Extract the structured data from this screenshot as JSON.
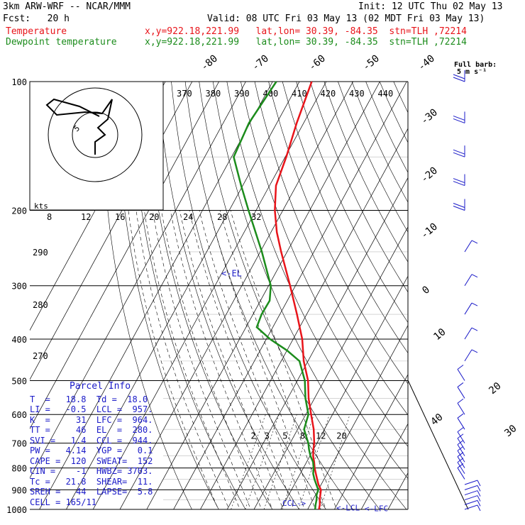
{
  "header": {
    "model": "3km ARW-WRF -- NCAR/MMM",
    "init": "Init: 12 UTC Thu 02 May 13",
    "fcst": "Fcst:   20 h",
    "valid": "Valid: 08 UTC Fri 03 May 13 (02 MDT Fri 03 May 13)",
    "temp_label": "Temperature",
    "temp_loc": "x,y=922.18,221.99   lat,lon= 30.39, -84.35  stn=TLH ,72214",
    "dew_label": "Dewpoint temperature",
    "dew_loc": "x,y=922.18,221.99   lat,lon= 30.39, -84.35  stn=TLH ,72214"
  },
  "colors": {
    "temperature": "#e8141a",
    "dewpoint": "#1c8c1c",
    "wind": "#1a1ac8",
    "grid": "#000000"
  },
  "barb_key": {
    "line1": "Full barb:",
    "line2": "5 m s⁻¹"
  },
  "hodograph": {
    "units_label": "kts",
    "ring_labels": [
      "5"
    ],
    "speed_ticks": [
      "8",
      "12",
      "16",
      "20",
      "24",
      "28",
      "32"
    ],
    "theta_e_ticks": [
      "370",
      "380",
      "390",
      "400",
      "410",
      "420",
      "430",
      "440"
    ]
  },
  "chart_data": {
    "type": "line",
    "diagram": "skew-T log-p",
    "title": "",
    "ylabel": "",
    "xlabel": "",
    "pressure_levels": [
      {
        "p": 100,
        "label": "100"
      },
      {
        "p": 200,
        "label": "200"
      },
      {
        "p": 300,
        "label": "300"
      },
      {
        "p": 400,
        "label": "400"
      },
      {
        "p": 500,
        "label": "500"
      },
      {
        "p": 600,
        "label": "600"
      },
      {
        "p": 700,
        "label": "700"
      },
      {
        "p": 800,
        "label": "800"
      },
      {
        "p": 900,
        "label": "900"
      },
      {
        "p": 1000,
        "label": "1000"
      }
    ],
    "isotherm_labels": [
      "-80",
      "-70",
      "-60",
      "-50",
      "-40",
      "-30",
      "-20",
      "-10",
      "0",
      "10",
      "20",
      "30",
      "40"
    ],
    "mixing_ratio_labels": [
      "2",
      "3",
      "5",
      "8",
      "12",
      "20"
    ],
    "theta_labels": [
      "290",
      "280",
      "270"
    ],
    "series": [
      {
        "name": "Temperature",
        "values": [
          {
            "p": 1000,
            "t": 24.2
          },
          {
            "p": 975,
            "t": 23.6
          },
          {
            "p": 950,
            "t": 22.6
          },
          {
            "p": 925,
            "t": 21.8
          },
          {
            "p": 900,
            "t": 21.0
          },
          {
            "p": 875,
            "t": 19.0
          },
          {
            "p": 850,
            "t": 17.4
          },
          {
            "p": 825,
            "t": 15.8
          },
          {
            "p": 800,
            "t": 14.2
          },
          {
            "p": 775,
            "t": 12.8
          },
          {
            "p": 750,
            "t": 11.2
          },
          {
            "p": 725,
            "t": 10.0
          },
          {
            "p": 700,
            "t": 9.0
          },
          {
            "p": 650,
            "t": 6.0
          },
          {
            "p": 600,
            "t": 2.0
          },
          {
            "p": 550,
            "t": -2.2
          },
          {
            "p": 500,
            "t": -6.0
          },
          {
            "p": 450,
            "t": -11.6
          },
          {
            "p": 400,
            "t": -16.6
          },
          {
            "p": 350,
            "t": -23.6
          },
          {
            "p": 300,
            "t": -32.0
          },
          {
            "p": 250,
            "t": -42.2
          },
          {
            "p": 225,
            "t": -47.8
          },
          {
            "p": 200,
            "t": -53.0
          },
          {
            "p": 175,
            "t": -57.6
          },
          {
            "p": 150,
            "t": -59.6
          },
          {
            "p": 125,
            "t": -62.6
          },
          {
            "p": 100,
            "t": -65.4
          }
        ]
      },
      {
        "name": "Dewpoint temperature",
        "values": [
          {
            "p": 1000,
            "td": 22.8
          },
          {
            "p": 975,
            "td": 22.0
          },
          {
            "p": 950,
            "td": 21.4
          },
          {
            "p": 925,
            "td": 20.4
          },
          {
            "p": 900,
            "td": 20.0
          },
          {
            "p": 875,
            "td": 18.2
          },
          {
            "p": 850,
            "td": 16.4
          },
          {
            "p": 825,
            "td": 14.8
          },
          {
            "p": 800,
            "td": 13.8
          },
          {
            "p": 775,
            "td": 12.4
          },
          {
            "p": 750,
            "td": 10.2
          },
          {
            "p": 725,
            "td": 8.4
          },
          {
            "p": 700,
            "td": 6.8
          },
          {
            "p": 650,
            "td": 2.4
          },
          {
            "p": 600,
            "td": 1.0
          },
          {
            "p": 550,
            "td": -3.4
          },
          {
            "p": 500,
            "td": -7.2
          },
          {
            "p": 450,
            "td": -13.2
          },
          {
            "p": 425,
            "td": -20.0
          },
          {
            "p": 400,
            "td": -28.6
          },
          {
            "p": 375,
            "td": -36.0
          },
          {
            "p": 350,
            "td": -36.8
          },
          {
            "p": 325,
            "td": -36.6
          },
          {
            "p": 300,
            "td": -39.2
          },
          {
            "p": 250,
            "td": -49.4
          },
          {
            "p": 200,
            "td": -62.8
          },
          {
            "p": 175,
            "td": -70.6
          },
          {
            "p": 150,
            "td": -79.2
          },
          {
            "p": 125,
            "td": -80.4
          },
          {
            "p": 100,
            "td": -78.6
          }
        ]
      }
    ],
    "level_markers": [
      {
        "label": "EL",
        "p": 280
      },
      {
        "label": "CCL",
        "p": 944
      },
      {
        "label": "LCL",
        "p": 957
      },
      {
        "label": "LFC",
        "p": 964
      }
    ],
    "wind_barbs_pressure": [
      1000,
      975,
      950,
      925,
      900,
      875,
      850,
      825,
      800,
      775,
      750,
      725,
      700,
      650,
      600,
      550,
      500,
      450,
      400,
      350,
      300,
      250,
      200,
      175,
      150,
      125,
      100
    ]
  },
  "parcel": {
    "title": "Parcel Info",
    "rows": [
      "T  =   18.8  Td =  18.0",
      "LI =   -0.5  LCL =  957.",
      "K  =     31  LFC =  964.",
      "TT =     46  EL  =  280.",
      "SVI =   1.4  CCL =  944.",
      "PW =   4.14  YGP =   0.1",
      "CAPE =  120  SWEAT=  152",
      "CIN =    -1  HWBZ= 3703.",
      "Tc =   21.8  SHEAR=  11.",
      "SREH =   44  LAPSE=  5.8",
      "CELL = 165/11"
    ]
  }
}
